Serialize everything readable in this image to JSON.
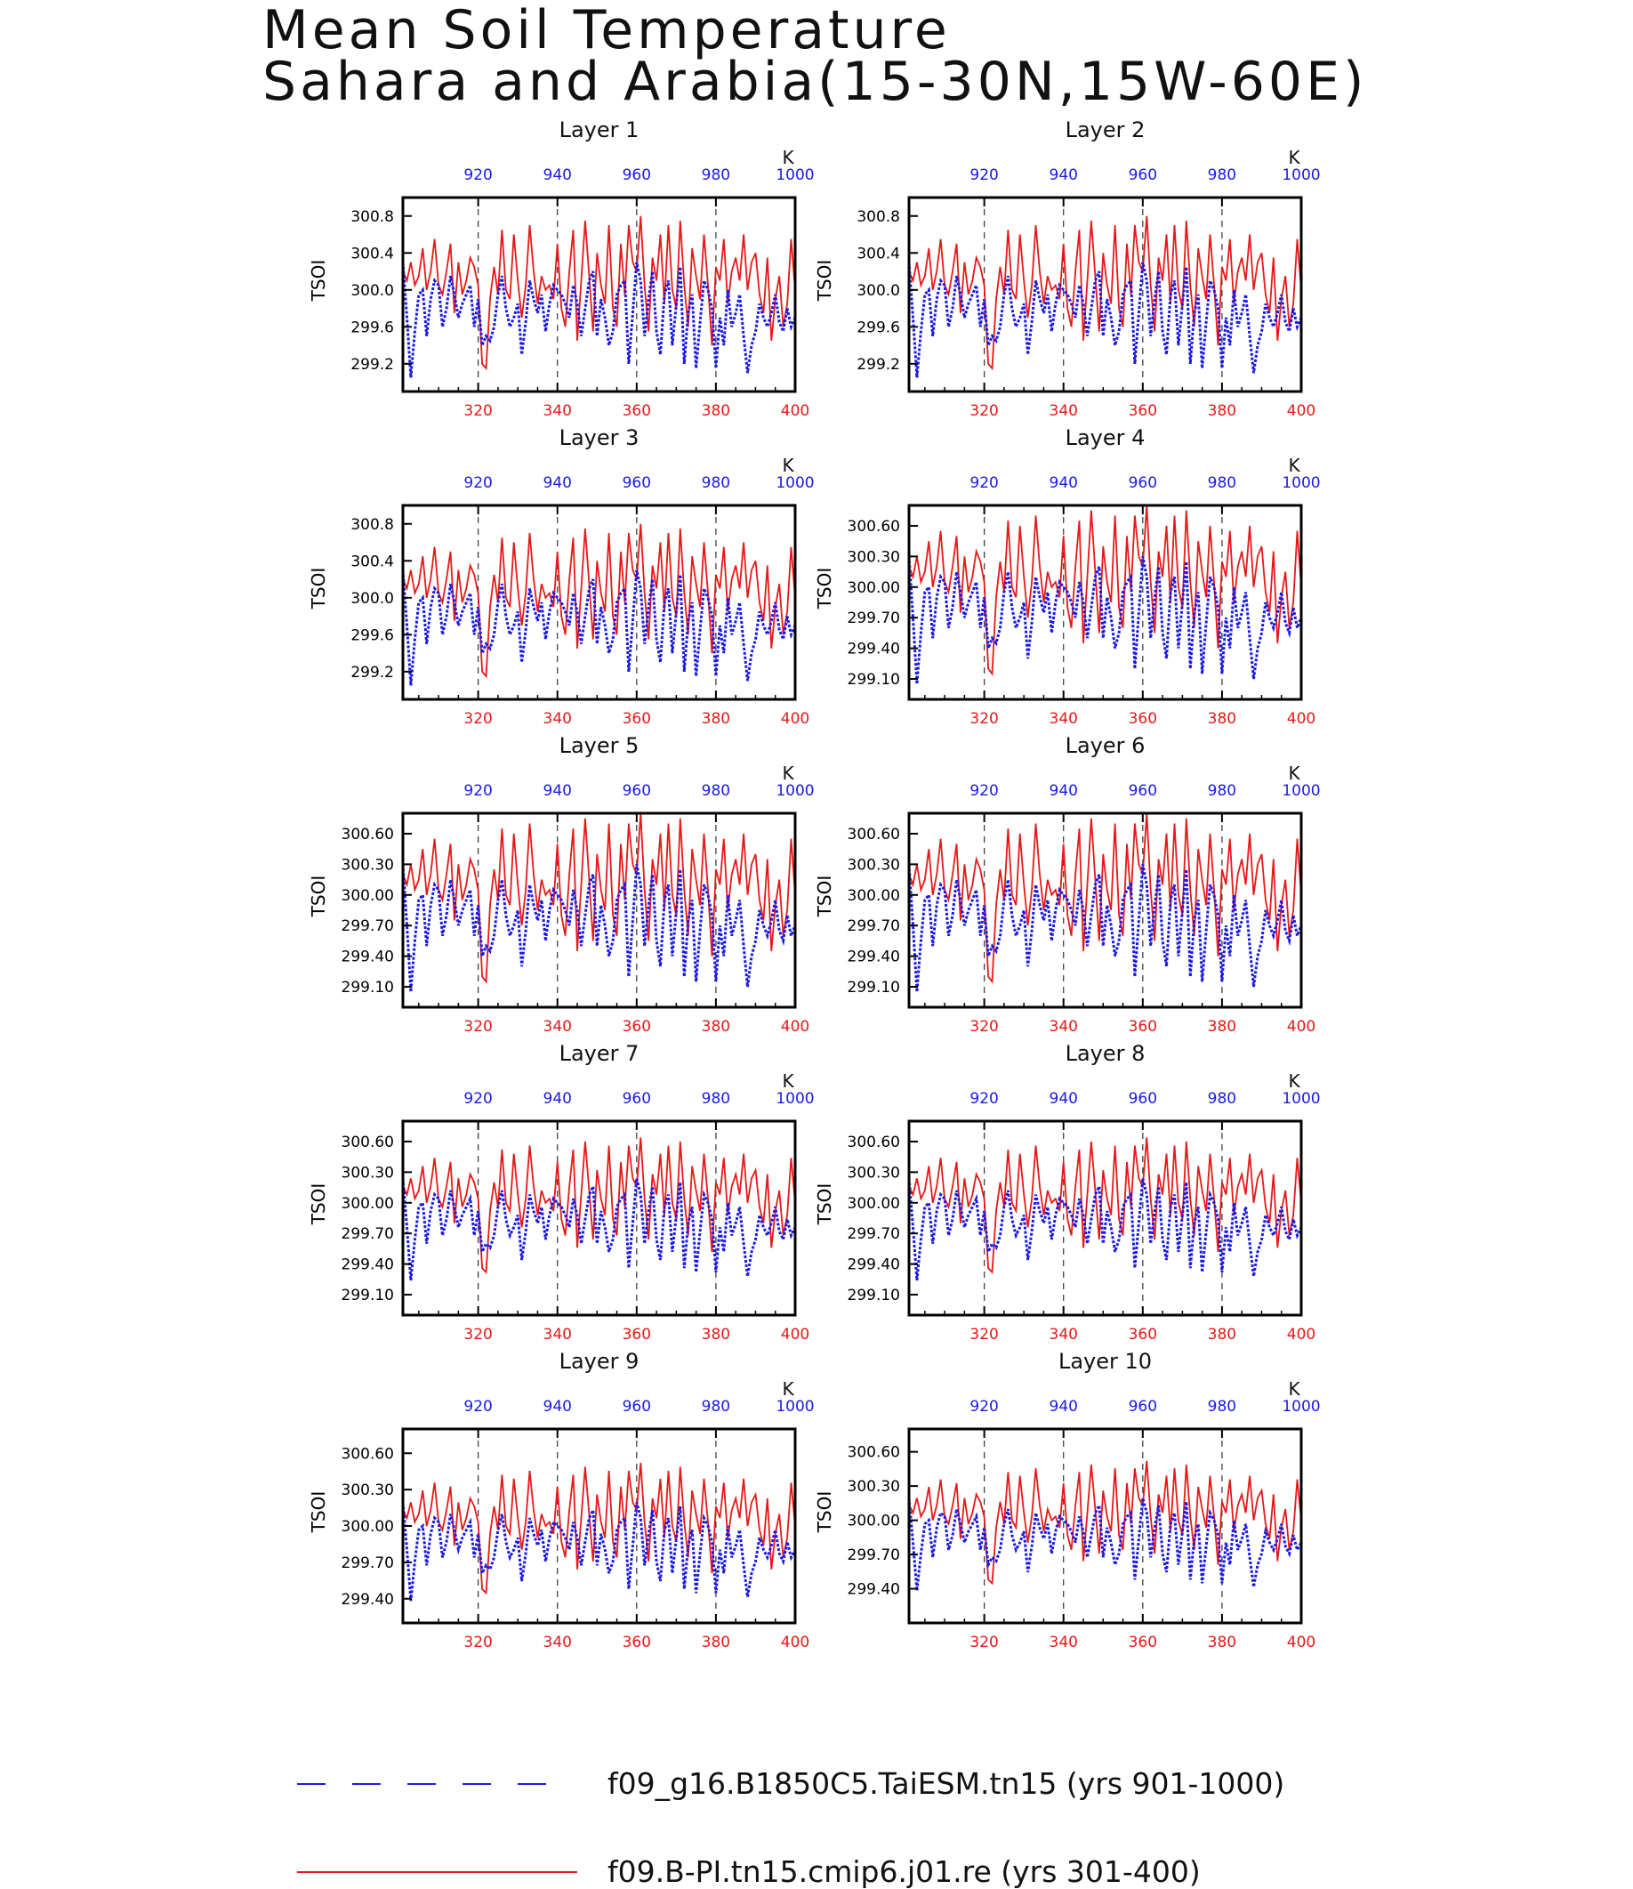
{
  "title": {
    "line1": "Mean Soil Temperature",
    "line2": "Sahara and Arabia(15-30N,15W-60E)"
  },
  "colors": {
    "red_series": "#e81818",
    "blue_series": "#1a1ae6",
    "axis": "#000000"
  },
  "chart_data": [
    {
      "type": "line",
      "title": "Layer 1",
      "ylabel": "TSOI",
      "units": "K",
      "bottom_axis": {
        "ticks": [
          320,
          340,
          360,
          380,
          400
        ],
        "range": [
          301,
          400
        ]
      },
      "top_axis": {
        "ticks": [
          920,
          940,
          960,
          980,
          1000
        ],
        "range": [
          901,
          1000
        ]
      },
      "yticks": [
        "300.8",
        "300.4",
        "300.0",
        "299.6",
        "299.2"
      ],
      "ylim": [
        298.9,
        301.0
      ]
    },
    {
      "type": "line",
      "title": "Layer 2",
      "ylabel": "TSOI",
      "units": "K",
      "bottom_axis": {
        "ticks": [
          320,
          340,
          360,
          380,
          400
        ],
        "range": [
          301,
          400
        ]
      },
      "top_axis": {
        "ticks": [
          920,
          940,
          960,
          980,
          1000
        ],
        "range": [
          901,
          1000
        ]
      },
      "yticks": [
        "300.8",
        "300.4",
        "300.0",
        "299.6",
        "299.2"
      ],
      "ylim": [
        298.9,
        301.0
      ]
    },
    {
      "type": "line",
      "title": "Layer 3",
      "ylabel": "TSOI",
      "units": "K",
      "bottom_axis": {
        "ticks": [
          320,
          340,
          360,
          380,
          400
        ],
        "range": [
          301,
          400
        ]
      },
      "top_axis": {
        "ticks": [
          920,
          940,
          960,
          980,
          1000
        ],
        "range": [
          901,
          1000
        ]
      },
      "yticks": [
        "300.8",
        "300.4",
        "300.0",
        "299.6",
        "299.2"
      ],
      "ylim": [
        298.9,
        301.0
      ]
    },
    {
      "type": "line",
      "title": "Layer 4",
      "ylabel": "TSOI",
      "units": "K",
      "bottom_axis": {
        "ticks": [
          320,
          340,
          360,
          380,
          400
        ],
        "range": [
          301,
          400
        ]
      },
      "top_axis": {
        "ticks": [
          920,
          940,
          960,
          980,
          1000
        ],
        "range": [
          901,
          1000
        ]
      },
      "yticks": [
        "300.60",
        "300.30",
        "300.00",
        "299.70",
        "299.40",
        "299.10"
      ],
      "ylim": [
        298.9,
        300.8
      ]
    },
    {
      "type": "line",
      "title": "Layer 5",
      "ylabel": "TSOI",
      "units": "K",
      "bottom_axis": {
        "ticks": [
          320,
          340,
          360,
          380,
          400
        ],
        "range": [
          301,
          400
        ]
      },
      "top_axis": {
        "ticks": [
          920,
          940,
          960,
          980,
          1000
        ],
        "range": [
          901,
          1000
        ]
      },
      "yticks": [
        "300.60",
        "300.30",
        "300.00",
        "299.70",
        "299.40",
        "299.10"
      ],
      "ylim": [
        298.9,
        300.8
      ]
    },
    {
      "type": "line",
      "title": "Layer 6",
      "ylabel": "TSOI",
      "units": "K",
      "bottom_axis": {
        "ticks": [
          320,
          340,
          360,
          380,
          400
        ],
        "range": [
          301,
          400
        ]
      },
      "top_axis": {
        "ticks": [
          920,
          940,
          960,
          980,
          1000
        ],
        "range": [
          901,
          1000
        ]
      },
      "yticks": [
        "300.60",
        "300.30",
        "300.00",
        "299.70",
        "299.40",
        "299.10"
      ],
      "ylim": [
        298.9,
        300.8
      ]
    },
    {
      "type": "line",
      "title": "Layer 7",
      "ylabel": "TSOI",
      "units": "K",
      "bottom_axis": {
        "ticks": [
          320,
          340,
          360,
          380,
          400
        ],
        "range": [
          301,
          400
        ]
      },
      "top_axis": {
        "ticks": [
          920,
          940,
          960,
          980,
          1000
        ],
        "range": [
          901,
          1000
        ]
      },
      "yticks": [
        "300.60",
        "300.30",
        "300.00",
        "299.70",
        "299.40",
        "299.10"
      ],
      "ylim": [
        298.9,
        300.8
      ]
    },
    {
      "type": "line",
      "title": "Layer 8",
      "ylabel": "TSOI",
      "units": "K",
      "bottom_axis": {
        "ticks": [
          320,
          340,
          360,
          380,
          400
        ],
        "range": [
          301,
          400
        ]
      },
      "top_axis": {
        "ticks": [
          920,
          940,
          960,
          980,
          1000
        ],
        "range": [
          901,
          1000
        ]
      },
      "yticks": [
        "300.60",
        "300.30",
        "300.00",
        "299.70",
        "299.40",
        "299.10"
      ],
      "ylim": [
        298.9,
        300.8
      ]
    },
    {
      "type": "line",
      "title": "Layer 9",
      "ylabel": "TSOI",
      "units": "K",
      "bottom_axis": {
        "ticks": [
          320,
          340,
          360,
          380,
          400
        ],
        "range": [
          301,
          400
        ]
      },
      "top_axis": {
        "ticks": [
          920,
          940,
          960,
          980,
          1000
        ],
        "range": [
          901,
          1000
        ]
      },
      "yticks": [
        "300.60",
        "300.30",
        "300.00",
        "299.70",
        "299.40"
      ],
      "ylim": [
        299.2,
        300.8
      ]
    },
    {
      "type": "line",
      "title": "Layer 10",
      "ylabel": "TSOI",
      "units": "K",
      "bottom_axis": {
        "ticks": [
          320,
          340,
          360,
          380,
          400
        ],
        "range": [
          301,
          400
        ]
      },
      "top_axis": {
        "ticks": [
          920,
          940,
          960,
          980,
          1000
        ],
        "range": [
          901,
          1000
        ]
      },
      "yticks": [
        "300.60",
        "300.30",
        "300.00",
        "299.70",
        "299.40"
      ],
      "ylim": [
        299.1,
        300.8
      ]
    }
  ],
  "series_profile": {
    "blue": [
      300.3,
      299.7,
      299.05,
      299.55,
      299.95,
      300.0,
      299.5,
      299.9,
      300.1,
      300.05,
      299.6,
      299.8,
      300.15,
      299.95,
      299.7,
      299.85,
      299.95,
      300.05,
      299.6,
      299.9,
      299.4,
      299.5,
      299.45,
      299.6,
      299.95,
      300.15,
      299.8,
      299.6,
      299.7,
      299.85,
      299.3,
      299.65,
      300.1,
      299.9,
      299.75,
      299.95,
      299.55,
      299.85,
      300.05,
      300.0,
      299.95,
      299.85,
      299.7,
      300.05,
      299.85,
      299.5,
      299.8,
      300.1,
      300.2,
      299.5,
      299.9,
      299.7,
      299.4,
      299.55,
      299.95,
      300.05,
      300.1,
      299.2,
      299.75,
      300.3,
      300.1,
      299.5,
      299.9,
      300.2,
      299.55,
      299.3,
      299.95,
      300.1,
      299.4,
      299.85,
      300.25,
      299.2,
      299.75,
      299.95,
      299.15,
      299.65,
      300.1,
      300.0,
      299.8,
      299.15,
      299.7,
      299.4,
      300.0,
      299.6,
      299.75,
      299.95,
      299.5,
      299.1,
      299.4,
      299.55,
      299.85,
      299.7,
      299.6,
      299.75,
      299.95,
      299.65,
      299.55,
      299.8,
      299.6,
      299.7
    ],
    "red": [
      300.2,
      300.1,
      300.3,
      300.05,
      300.15,
      300.45,
      300.0,
      300.2,
      300.55,
      300.05,
      299.95,
      300.2,
      300.5,
      299.75,
      300.3,
      299.95,
      300.1,
      300.35,
      300.25,
      300.05,
      299.2,
      299.15,
      299.9,
      300.25,
      299.95,
      300.65,
      300.0,
      299.9,
      300.6,
      300.1,
      299.7,
      300.05,
      300.7,
      300.2,
      299.85,
      300.15,
      300.0,
      300.05,
      299.9,
      300.5,
      299.8,
      299.6,
      300.2,
      300.65,
      299.45,
      300.1,
      300.75,
      300.15,
      299.55,
      300.4,
      300.05,
      299.85,
      300.7,
      299.8,
      299.6,
      300.5,
      299.95,
      300.7,
      300.3,
      300.2,
      300.8,
      300.05,
      299.55,
      300.35,
      300.1,
      300.6,
      299.85,
      300.7,
      300.0,
      299.8,
      300.75,
      300.05,
      299.6,
      300.45,
      300.15,
      299.9,
      300.6,
      300.05,
      299.4,
      300.25,
      300.1,
      300.55,
      299.85,
      300.2,
      300.35,
      300.1,
      300.6,
      300.0,
      300.3,
      300.4,
      299.95,
      299.75,
      300.35,
      299.45,
      299.9,
      300.15,
      299.6,
      299.85,
      300.55,
      300.0
    ]
  },
  "legend": [
    {
      "label": "f09_g16.B1850C5.TaiESM.tn15 (yrs 901-1000)",
      "color": "#1a1ae6",
      "style": "dashed"
    },
    {
      "label": "f09.B-PI.tn15.cmip6.j01.re (yrs 301-400)",
      "color": "#e81818",
      "style": "solid"
    }
  ]
}
